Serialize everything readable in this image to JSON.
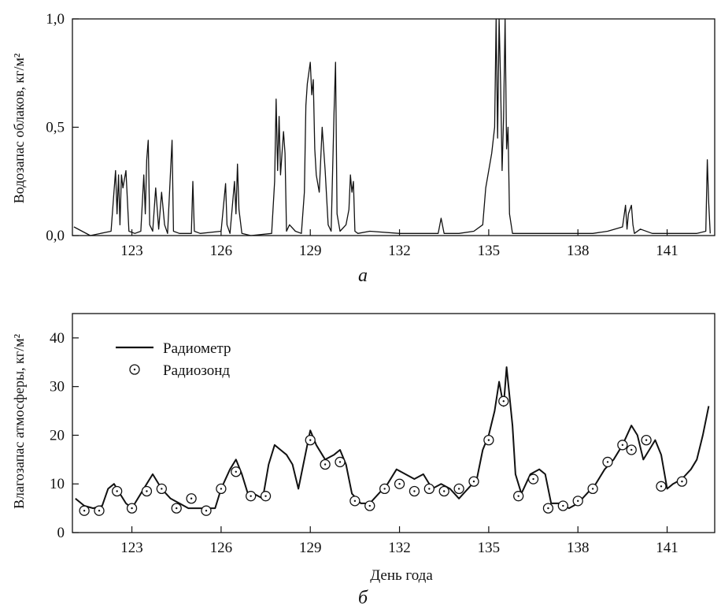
{
  "chart_data": [
    {
      "type": "line",
      "panel_label": "а",
      "ylabel": "Водозапас облаков, кг/м²",
      "xlabel": "",
      "xlim": [
        121.0,
        142.6
      ],
      "ylim": [
        0,
        1.0
      ],
      "xticks": [
        123,
        126,
        129,
        132,
        135,
        138,
        141
      ],
      "yticks": [
        0,
        0.5,
        1.0
      ],
      "ytick_labels": [
        "0,0",
        "0,5",
        "1,0"
      ],
      "grid": false,
      "series": [
        {
          "values_note": "approximate peak readings",
          "x": [
            121.05,
            121.6,
            122.3,
            122.45,
            122.5,
            122.55,
            122.6,
            122.65,
            122.7,
            122.8,
            122.9,
            123.1,
            123.3,
            123.4,
            123.45,
            123.5,
            123.55,
            123.6,
            123.7,
            123.8,
            123.9,
            124.0,
            124.1,
            124.2,
            124.3,
            124.35,
            124.4,
            124.6,
            125.0,
            125.05,
            125.1,
            125.3,
            126.0,
            126.15,
            126.2,
            126.3,
            126.45,
            126.5,
            126.55,
            126.6,
            126.7,
            127.0,
            127.7,
            127.8,
            127.85,
            127.9,
            127.95,
            128.0,
            128.1,
            128.15,
            128.2,
            128.3,
            128.5,
            128.7,
            128.8,
            128.85,
            128.9,
            129.0,
            129.05,
            129.1,
            129.15,
            129.2,
            129.3,
            129.4,
            129.5,
            129.6,
            129.7,
            129.8,
            129.85,
            129.9,
            130.0,
            130.2,
            130.3,
            130.35,
            130.4,
            130.45,
            130.5,
            130.6,
            131.0,
            132.0,
            133.3,
            133.4,
            133.5,
            134.0,
            134.5,
            134.8,
            134.9,
            135.0,
            135.1,
            135.2,
            135.25,
            135.3,
            135.35,
            135.4,
            135.45,
            135.5,
            135.55,
            135.6,
            135.65,
            135.7,
            135.8,
            136.5,
            138.5,
            139.0,
            139.5,
            139.6,
            139.65,
            139.7,
            139.8,
            139.85,
            139.9,
            140.1,
            140.5,
            141.0,
            142.0,
            142.3,
            142.35,
            142.4,
            142.45
          ],
          "y": [
            0.04,
            0.0,
            0.02,
            0.3,
            0.1,
            0.28,
            0.05,
            0.28,
            0.22,
            0.3,
            0.02,
            0.01,
            0.02,
            0.28,
            0.1,
            0.35,
            0.44,
            0.05,
            0.02,
            0.22,
            0.03,
            0.2,
            0.05,
            0.01,
            0.3,
            0.44,
            0.02,
            0.01,
            0.01,
            0.25,
            0.02,
            0.01,
            0.02,
            0.24,
            0.05,
            0.01,
            0.25,
            0.1,
            0.33,
            0.12,
            0.01,
            0.0,
            0.01,
            0.25,
            0.63,
            0.3,
            0.55,
            0.28,
            0.48,
            0.38,
            0.02,
            0.05,
            0.02,
            0.01,
            0.2,
            0.6,
            0.7,
            0.8,
            0.65,
            0.72,
            0.4,
            0.28,
            0.2,
            0.5,
            0.3,
            0.05,
            0.02,
            0.57,
            0.8,
            0.1,
            0.02,
            0.05,
            0.12,
            0.28,
            0.2,
            0.25,
            0.02,
            0.01,
            0.02,
            0.01,
            0.01,
            0.08,
            0.01,
            0.01,
            0.02,
            0.05,
            0.22,
            0.3,
            0.38,
            0.5,
            1.0,
            0.45,
            1.0,
            0.7,
            0.3,
            0.55,
            1.0,
            0.4,
            0.5,
            0.1,
            0.01,
            0.01,
            0.01,
            0.02,
            0.04,
            0.14,
            0.03,
            0.1,
            0.14,
            0.05,
            0.01,
            0.03,
            0.01,
            0.01,
            0.01,
            0.02,
            0.35,
            0.15,
            0.01
          ]
        }
      ]
    },
    {
      "type": "line",
      "panel_label": "б",
      "ylabel": "Влагозапас атмосферы, кг/м²",
      "xlabel": "День года",
      "xlim": [
        121.0,
        142.6
      ],
      "ylim": [
        0,
        45
      ],
      "xticks": [
        123,
        126,
        129,
        132,
        135,
        138,
        141
      ],
      "yticks": [
        0,
        10,
        20,
        30,
        40
      ],
      "ytick_labels": [
        "0",
        "10",
        "20",
        "30",
        "40"
      ],
      "grid": false,
      "legend_position": "top-left",
      "series": [
        {
          "name": "Радиометр",
          "style": "line",
          "x": [
            121.1,
            121.4,
            121.7,
            122.0,
            122.2,
            122.4,
            122.6,
            122.8,
            123.0,
            123.2,
            123.5,
            123.7,
            124.0,
            124.3,
            124.6,
            124.9,
            125.2,
            125.5,
            125.8,
            126.0,
            126.3,
            126.5,
            126.7,
            126.9,
            127.1,
            127.4,
            127.6,
            127.8,
            128.0,
            128.2,
            128.4,
            128.6,
            128.9,
            129.0,
            129.2,
            129.5,
            129.8,
            130.0,
            130.2,
            130.4,
            130.7,
            131.0,
            131.3,
            131.6,
            131.9,
            132.2,
            132.5,
            132.8,
            133.1,
            133.4,
            133.7,
            134.0,
            134.3,
            134.6,
            134.8,
            135.0,
            135.2,
            135.35,
            135.5,
            135.6,
            135.8,
            135.9,
            136.1,
            136.4,
            136.7,
            136.9,
            137.1,
            137.4,
            137.7,
            138.0,
            138.3,
            138.6,
            138.9,
            139.2,
            139.5,
            139.8,
            140.0,
            140.2,
            140.4,
            140.6,
            140.8,
            141.0,
            141.2,
            141.5,
            141.8,
            142.0,
            142.2,
            142.4
          ],
          "y": [
            7,
            5.5,
            5,
            5.5,
            9,
            10,
            8,
            6,
            5,
            7,
            10,
            12,
            9,
            7,
            6,
            5,
            5,
            5,
            5,
            9,
            13,
            15,
            12,
            8,
            8,
            7,
            14,
            18,
            17,
            16,
            14,
            9,
            18,
            21,
            18,
            15,
            16,
            17,
            14,
            8,
            6,
            6,
            8,
            10,
            13,
            12,
            11,
            12,
            9,
            10,
            9,
            7,
            9,
            11,
            17,
            20,
            25,
            31,
            26,
            34,
            22,
            12,
            8,
            12,
            13,
            12,
            6,
            6,
            5,
            6,
            8,
            10,
            13,
            15,
            18,
            22,
            20,
            15,
            17,
            19,
            16,
            9,
            10,
            11,
            13,
            15,
            20,
            26
          ]
        },
        {
          "name": "Радиозонд",
          "style": "markers",
          "x": [
            121.4,
            121.9,
            122.5,
            123.0,
            123.5,
            124.0,
            124.5,
            125.0,
            125.5,
            126.0,
            126.5,
            127.0,
            127.5,
            129.0,
            129.5,
            130.0,
            130.5,
            131.0,
            131.5,
            132.0,
            132.5,
            133.0,
            133.5,
            134.0,
            134.5,
            135.0,
            135.5,
            136.0,
            136.5,
            137.0,
            137.5,
            138.0,
            138.5,
            139.0,
            139.5,
            139.8,
            140.3,
            140.8,
            141.5
          ],
          "y": [
            4.5,
            4.5,
            8.5,
            5.0,
            8.5,
            9.0,
            5.0,
            7.0,
            4.5,
            9.0,
            12.5,
            7.5,
            7.5,
            19.0,
            14.0,
            14.5,
            6.5,
            5.5,
            9.0,
            10.0,
            8.5,
            9.0,
            8.5,
            9.0,
            10.5,
            19.0,
            27.0,
            7.5,
            11.0,
            5.0,
            5.5,
            6.5,
            9.0,
            14.5,
            18.0,
            17.0,
            19.0,
            9.5,
            10.5
          ]
        }
      ]
    }
  ]
}
